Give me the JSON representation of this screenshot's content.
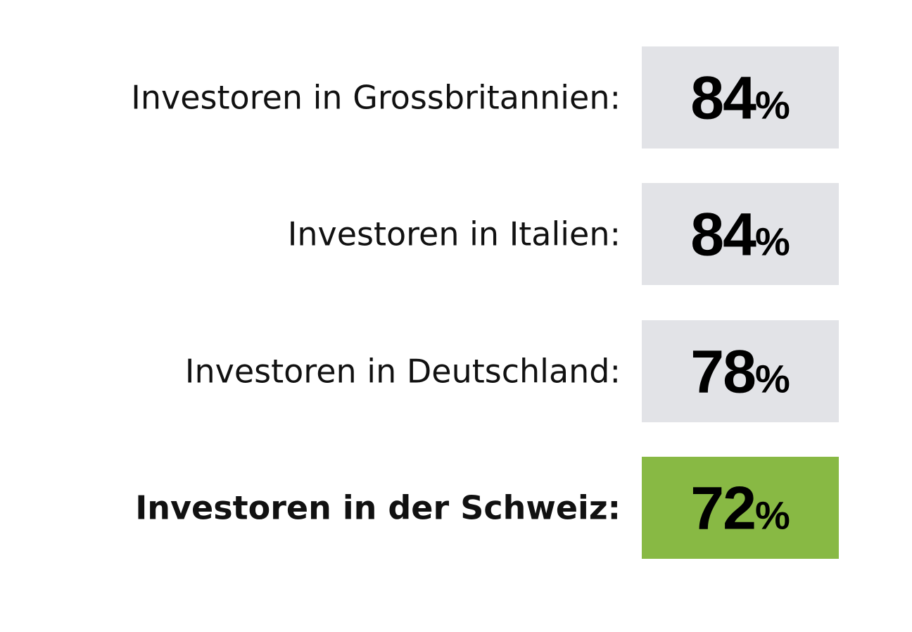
{
  "rows": [
    {
      "label": "Investoren in Grossbritannien:",
      "value": "84",
      "unit": "%",
      "color": "#e2e3e7",
      "bold": false
    },
    {
      "label": "Investoren in Italien:",
      "value": "84",
      "unit": "%",
      "color": "#e2e3e7",
      "bold": false
    },
    {
      "label": "Investoren in Deutschland:",
      "value": "78",
      "unit": "%",
      "color": "#e2e3e7",
      "bold": false
    },
    {
      "label": "Investoren in der Schweiz:",
      "value": "72",
      "unit": "%",
      "color": "#88b944",
      "bold": true
    }
  ]
}
